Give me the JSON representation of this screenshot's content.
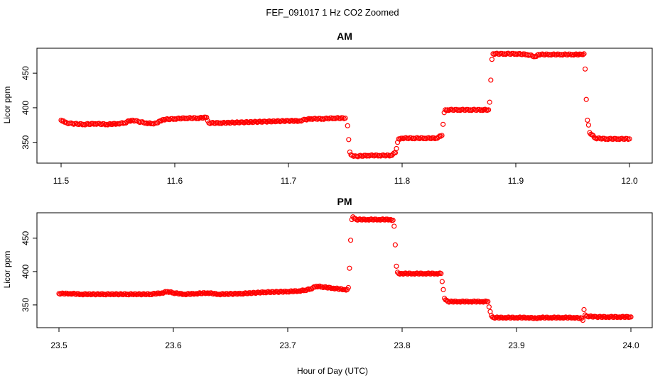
{
  "figure": {
    "title": "FEF_091017  1 Hz CO2 Zoomed",
    "xlabel": "Hour of Day (UTC)"
  },
  "chart_data": [
    {
      "type": "scatter",
      "title": "AM",
      "ylabel": "Licor ppm",
      "xlim": [
        11.5,
        12.0
      ],
      "ylim": [
        322,
        484
      ],
      "xticks": [
        11.5,
        11.6,
        11.7,
        11.8,
        11.9,
        12.0
      ],
      "xtick_labels": [
        "11.5",
        "11.6",
        "11.7",
        "11.8",
        "11.9",
        "12.0"
      ],
      "yticks": [
        350,
        400,
        450
      ],
      "ytick_labels": [
        "350",
        "400",
        "450"
      ],
      "color": "#ff0000",
      "marker": "open-circle",
      "grid": false,
      "series": [
        {
          "x": [
            11.5,
            11.502,
            11.505,
            11.51,
            11.52,
            11.53,
            11.54,
            11.55,
            11.556,
            11.56,
            11.563,
            11.568,
            11.575,
            11.58,
            11.584,
            11.587,
            11.59,
            11.6,
            11.61,
            11.62,
            11.628,
            11.63,
            11.64,
            11.66,
            11.68,
            11.7,
            11.71,
            11.715,
            11.72,
            11.73,
            11.74,
            11.75,
            11.752,
            11.753,
            11.754,
            11.755,
            11.756,
            11.76,
            11.77,
            11.78,
            11.79,
            11.794,
            11.795,
            11.796,
            11.797,
            11.8,
            11.81,
            11.82,
            11.83,
            11.835,
            11.836,
            11.837,
            11.838,
            11.84,
            11.85,
            11.86,
            11.87,
            11.876,
            11.877,
            11.878,
            11.879,
            11.88,
            11.89,
            11.9,
            11.91,
            11.917,
            11.92,
            11.93,
            11.94,
            11.95,
            11.958,
            11.96,
            11.961,
            11.962,
            11.963,
            11.964,
            11.965,
            11.97,
            11.98,
            11.99,
            12.0
          ],
          "y": [
            382,
            381,
            378,
            377,
            376,
            377,
            376,
            377,
            378,
            381,
            382,
            380,
            378,
            377,
            378,
            381,
            383,
            384,
            385,
            385,
            386,
            378,
            378,
            379,
            380,
            381,
            381,
            383,
            384,
            384,
            385,
            385,
            374,
            354,
            336,
            332,
            331,
            330,
            331,
            331,
            331,
            335,
            341,
            350,
            355,
            356,
            356,
            356,
            356,
            360,
            376,
            393,
            397,
            397,
            397,
            397,
            397,
            397,
            408,
            440,
            470,
            478,
            478,
            478,
            477,
            474,
            477,
            477,
            477,
            477,
            477,
            478,
            456,
            412,
            382,
            375,
            364,
            356,
            355,
            355,
            355
          ]
        }
      ]
    },
    {
      "type": "scatter",
      "title": "PM",
      "ylabel": "Licor ppm",
      "xlim": [
        23.5,
        24.0
      ],
      "ylim": [
        318,
        486
      ],
      "xticks": [
        23.5,
        23.6,
        23.7,
        23.8,
        23.9,
        24.0
      ],
      "xtick_labels": [
        "23.5",
        "23.6",
        "23.7",
        "23.8",
        "23.9",
        "24.0"
      ],
      "yticks": [
        350,
        400,
        450
      ],
      "ytick_labels": [
        "350",
        "400",
        "450"
      ],
      "color": "#ff0000",
      "marker": "open-circle",
      "grid": false,
      "series": [
        {
          "x": [
            23.5,
            23.51,
            23.52,
            23.54,
            23.56,
            23.58,
            23.59,
            23.595,
            23.6,
            23.61,
            23.62,
            23.63,
            23.64,
            23.66,
            23.68,
            23.7,
            23.71,
            23.715,
            23.72,
            23.725,
            23.73,
            23.74,
            23.75,
            23.752,
            23.753,
            23.754,
            23.755,
            23.756,
            23.757,
            23.76,
            23.77,
            23.78,
            23.79,
            23.792,
            23.793,
            23.794,
            23.795,
            23.796,
            23.797,
            23.8,
            23.81,
            23.82,
            23.83,
            23.834,
            23.835,
            23.836,
            23.837,
            23.84,
            23.85,
            23.86,
            23.87,
            23.875,
            23.876,
            23.877,
            23.878,
            23.88,
            23.89,
            23.9,
            23.91,
            23.917,
            23.92,
            23.93,
            23.94,
            23.95,
            23.957,
            23.958,
            23.959,
            23.96,
            23.962,
            23.97,
            23.98,
            23.99,
            24.0
          ],
          "y": [
            367,
            367,
            366,
            366,
            366,
            366,
            368,
            370,
            368,
            366,
            367,
            368,
            366,
            367,
            369,
            370,
            371,
            372,
            374,
            378,
            377,
            375,
            373,
            373,
            376,
            405,
            447,
            478,
            482,
            478,
            478,
            478,
            478,
            477,
            468,
            440,
            408,
            399,
            397,
            397,
            397,
            397,
            397,
            397,
            385,
            373,
            360,
            355,
            355,
            355,
            355,
            355,
            347,
            340,
            334,
            331,
            331,
            331,
            331,
            330,
            331,
            331,
            331,
            331,
            330,
            327,
            343,
            335,
            333,
            332,
            332,
            332,
            332
          ]
        }
      ]
    }
  ]
}
